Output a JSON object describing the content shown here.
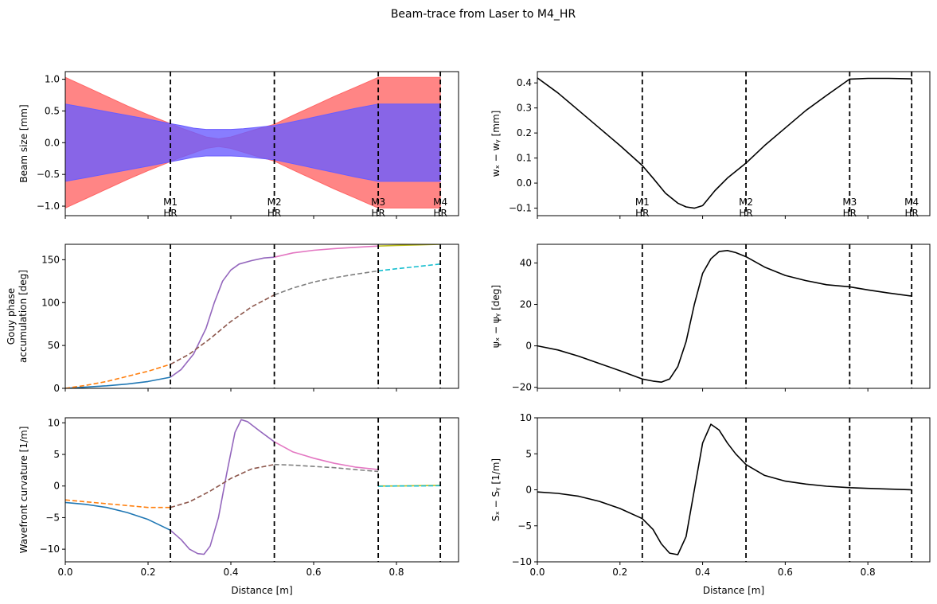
{
  "figure": {
    "title": "Beam-trace from Laser to M4_HR"
  },
  "chart_data": [
    {
      "id": "beam_size",
      "type": "area",
      "xlabel": "",
      "ylabel": "Beam size [mm]",
      "xlim": [
        0,
        0.95
      ],
      "ylim": [
        -1.15,
        1.12
      ],
      "yticks": [
        -1.0,
        -0.5,
        0.0,
        0.5,
        1.0
      ],
      "ytick_labels": [
        "−1.0",
        "−0.5",
        "0.0",
        "0.5",
        "1.0"
      ],
      "xticks": [
        0,
        0.2,
        0.4,
        0.6,
        0.8
      ],
      "show_xtick_labels": false,
      "vlines": [
        0.254,
        0.505,
        0.756,
        0.906
      ],
      "vline_labels": [
        "M1\nHR",
        "M2\nHR",
        "M3\nHR",
        "M4\nHR"
      ],
      "series": [
        {
          "color": "#ff6666",
          "x": [
            0,
            0.05,
            0.1,
            0.15,
            0.2,
            0.254,
            0.28,
            0.31,
            0.34,
            0.37,
            0.4,
            0.43,
            0.46,
            0.505,
            0.55,
            0.6,
            0.65,
            0.7,
            0.756,
            0.8,
            0.85,
            0.906
          ],
          "upper": [
            1.03,
            0.88,
            0.73,
            0.58,
            0.44,
            0.3,
            0.23,
            0.16,
            0.09,
            0.06,
            0.09,
            0.15,
            0.21,
            0.29,
            0.43,
            0.58,
            0.73,
            0.87,
            1.03,
            1.03,
            1.03,
            1.03
          ]
        },
        {
          "color": "#6a5cff",
          "x": [
            0,
            0.05,
            0.1,
            0.15,
            0.2,
            0.254,
            0.28,
            0.31,
            0.34,
            0.37,
            0.4,
            0.43,
            0.46,
            0.505,
            0.55,
            0.6,
            0.65,
            0.7,
            0.756,
            0.8,
            0.85,
            0.906
          ],
          "upper": [
            0.61,
            0.55,
            0.49,
            0.43,
            0.37,
            0.3,
            0.27,
            0.23,
            0.21,
            0.21,
            0.21,
            0.22,
            0.24,
            0.27,
            0.33,
            0.4,
            0.47,
            0.54,
            0.61,
            0.61,
            0.61,
            0.61
          ]
        }
      ]
    },
    {
      "id": "w_diff",
      "type": "line",
      "xlabel": "",
      "ylabel": "wₓ − wᵧ [mm]",
      "xlim": [
        0,
        0.95
      ],
      "ylim": [
        -0.13,
        0.445
      ],
      "yticks": [
        -0.1,
        0.0,
        0.1,
        0.2,
        0.3,
        0.4
      ],
      "ytick_labels": [
        "−0.1",
        "0.0",
        "0.1",
        "0.2",
        "0.3",
        "0.4"
      ],
      "xticks": [
        0,
        0.2,
        0.4,
        0.6,
        0.8
      ],
      "show_xtick_labels": false,
      "vlines": [
        0.254,
        0.505,
        0.756,
        0.906
      ],
      "vline_labels": [
        "M1\nHR",
        "M2\nHR",
        "M3\nHR",
        "M4\nHR"
      ],
      "series": [
        {
          "color": "#000000",
          "dashed": false,
          "x": [
            0,
            0.05,
            0.1,
            0.15,
            0.2,
            0.254,
            0.28,
            0.31,
            0.34,
            0.36,
            0.38,
            0.4,
            0.43,
            0.46,
            0.505,
            0.55,
            0.6,
            0.65,
            0.7,
            0.756,
            0.8,
            0.85,
            0.906
          ],
          "y": [
            0.42,
            0.36,
            0.29,
            0.22,
            0.15,
            0.07,
            0.02,
            -0.04,
            -0.08,
            -0.095,
            -0.1,
            -0.09,
            -0.03,
            0.02,
            0.08,
            0.15,
            0.22,
            0.29,
            0.35,
            0.415,
            0.418,
            0.418,
            0.416
          ]
        }
      ]
    },
    {
      "id": "gouy",
      "type": "line",
      "xlabel": "",
      "ylabel": "Gouy phase\naccumulation [deg]",
      "xlim": [
        0,
        0.95
      ],
      "ylim": [
        0,
        168
      ],
      "yticks": [
        0,
        50,
        100,
        150
      ],
      "ytick_labels": [
        "0",
        "50",
        "100",
        "150"
      ],
      "xticks": [
        0,
        0.2,
        0.4,
        0.6,
        0.8
      ],
      "show_xtick_labels": false,
      "vlines": [
        0.254,
        0.505,
        0.756,
        0.906
      ],
      "vline_labels": [],
      "series": [
        {
          "color": "#1f77b4",
          "dashed": false,
          "x": [
            0,
            0.05,
            0.1,
            0.15,
            0.2,
            0.254
          ],
          "y": [
            0,
            1.5,
            3,
            5,
            8,
            13
          ]
        },
        {
          "color": "#ff7f0e",
          "dashed": true,
          "x": [
            0,
            0.05,
            0.1,
            0.15,
            0.2,
            0.254
          ],
          "y": [
            0,
            3.5,
            8,
            14,
            20,
            28
          ]
        },
        {
          "color": "#9467bd",
          "dashed": false,
          "x": [
            0.254,
            0.28,
            0.31,
            0.34,
            0.36,
            0.38,
            0.4,
            0.42,
            0.45,
            0.48,
            0.505
          ],
          "y": [
            13,
            22,
            40,
            70,
            100,
            125,
            138,
            145,
            149,
            152,
            153
          ]
        },
        {
          "color": "#8c564b",
          "dashed": true,
          "x": [
            0.254,
            0.3,
            0.35,
            0.4,
            0.45,
            0.505
          ],
          "y": [
            28,
            40,
            58,
            78,
            95,
            109
          ]
        },
        {
          "color": "#e377c2",
          "dashed": false,
          "x": [
            0.505,
            0.55,
            0.6,
            0.65,
            0.7,
            0.756
          ],
          "y": [
            153,
            158,
            161,
            163,
            164.5,
            166
          ]
        },
        {
          "color": "#7f7f7f",
          "dashed": true,
          "x": [
            0.505,
            0.55,
            0.6,
            0.65,
            0.7,
            0.756
          ],
          "y": [
            109,
            117,
            124,
            129,
            133,
            137
          ]
        },
        {
          "color": "#bcbd22",
          "dashed": false,
          "x": [
            0.756,
            0.8,
            0.85,
            0.906
          ],
          "y": [
            166,
            166.7,
            167.3,
            168
          ]
        },
        {
          "color": "#17becf",
          "dashed": true,
          "x": [
            0.756,
            0.8,
            0.85,
            0.906
          ],
          "y": [
            137,
            139.5,
            142,
            145
          ]
        }
      ]
    },
    {
      "id": "psi_diff",
      "type": "line",
      "xlabel": "",
      "ylabel": "ψₓ − ψᵧ [deg]",
      "xlim": [
        0,
        0.95
      ],
      "ylim": [
        -20.5,
        49
      ],
      "yticks": [
        -20,
        0,
        20,
        40
      ],
      "ytick_labels": [
        "−20",
        "0",
        "20",
        "40"
      ],
      "xticks": [
        0,
        0.2,
        0.4,
        0.6,
        0.8
      ],
      "show_xtick_labels": false,
      "vlines": [
        0.254,
        0.505,
        0.756,
        0.906
      ],
      "vline_labels": [],
      "series": [
        {
          "color": "#000000",
          "dashed": false,
          "x": [
            0,
            0.05,
            0.1,
            0.15,
            0.2,
            0.254,
            0.28,
            0.3,
            0.32,
            0.34,
            0.36,
            0.38,
            0.4,
            0.42,
            0.44,
            0.46,
            0.48,
            0.505,
            0.55,
            0.6,
            0.65,
            0.7,
            0.756,
            0.8,
            0.85,
            0.906
          ],
          "y": [
            0,
            -2,
            -5,
            -8.5,
            -12,
            -16,
            -17,
            -17.5,
            -16,
            -10,
            2,
            20,
            35,
            42,
            45.5,
            46,
            45,
            43,
            38,
            34,
            31.5,
            29.5,
            28.5,
            27,
            25.5,
            24
          ]
        }
      ]
    },
    {
      "id": "curvature",
      "type": "line",
      "xlabel": "Distance [m]",
      "ylabel": "Wavefront curvature [1/m]",
      "xlim": [
        0,
        0.95
      ],
      "ylim": [
        -12,
        10.8
      ],
      "yticks": [
        -10,
        -5,
        0,
        5,
        10
      ],
      "ytick_labels": [
        "−10",
        "−5",
        "0",
        "5",
        "10"
      ],
      "xticks": [
        0,
        0.2,
        0.4,
        0.6,
        0.8
      ],
      "xtick_labels": [
        "0.0",
        "0.2",
        "0.4",
        "0.6",
        "0.8"
      ],
      "show_xtick_labels": true,
      "vlines": [
        0.254,
        0.505,
        0.756,
        0.906
      ],
      "vline_labels": [],
      "series": [
        {
          "color": "#1f77b4",
          "dashed": false,
          "x": [
            0,
            0.05,
            0.1,
            0.15,
            0.2,
            0.254
          ],
          "y": [
            -2.6,
            -2.9,
            -3.4,
            -4.2,
            -5.3,
            -7.0
          ]
        },
        {
          "color": "#ff7f0e",
          "dashed": true,
          "x": [
            0,
            0.05,
            0.1,
            0.15,
            0.2,
            0.254
          ],
          "y": [
            -2.2,
            -2.5,
            -2.8,
            -3.1,
            -3.4,
            -3.4
          ]
        },
        {
          "color": "#9467bd",
          "dashed": false,
          "x": [
            0.254,
            0.28,
            0.3,
            0.32,
            0.335,
            0.35,
            0.37,
            0.39,
            0.41,
            0.425,
            0.44,
            0.47,
            0.505
          ],
          "y": [
            -7.0,
            -8.5,
            -10,
            -10.7,
            -10.8,
            -9.5,
            -5,
            2,
            8.5,
            10.5,
            10.2,
            8.7,
            7.0
          ]
        },
        {
          "color": "#8c564b",
          "dashed": true,
          "x": [
            0.254,
            0.3,
            0.35,
            0.4,
            0.45,
            0.505
          ],
          "y": [
            -3.4,
            -2.5,
            -0.8,
            1.2,
            2.7,
            3.4
          ]
        },
        {
          "color": "#e377c2",
          "dashed": false,
          "x": [
            0.505,
            0.55,
            0.6,
            0.65,
            0.7,
            0.756
          ],
          "y": [
            7.0,
            5.4,
            4.4,
            3.6,
            3.0,
            2.6
          ]
        },
        {
          "color": "#7f7f7f",
          "dashed": true,
          "x": [
            0.505,
            0.55,
            0.6,
            0.65,
            0.7,
            0.756
          ],
          "y": [
            3.4,
            3.3,
            3.1,
            2.9,
            2.6,
            2.3
          ]
        },
        {
          "color": "#bcbd22",
          "dashed": false,
          "x": [
            0.756,
            0.8,
            0.85,
            0.906
          ],
          "y": [
            0.0,
            0.0,
            0.05,
            0.1
          ]
        },
        {
          "color": "#17becf",
          "dashed": true,
          "x": [
            0.756,
            0.8,
            0.85,
            0.906
          ],
          "y": [
            -0.05,
            0.0,
            0.0,
            0.05
          ]
        }
      ]
    },
    {
      "id": "s_diff",
      "type": "line",
      "xlabel": "Distance [m]",
      "ylabel": "Sₓ − Sᵧ [1/m]",
      "xlim": [
        0,
        0.95
      ],
      "ylim": [
        -10,
        10
      ],
      "yticks": [
        -10,
        -5,
        0,
        5,
        10
      ],
      "ytick_labels": [
        "−10",
        "−5",
        "0",
        "5",
        "10"
      ],
      "xticks": [
        0,
        0.2,
        0.4,
        0.6,
        0.8
      ],
      "xtick_labels": [
        "0.0",
        "0.2",
        "0.4",
        "0.6",
        "0.8"
      ],
      "show_xtick_labels": true,
      "vlines": [
        0.254,
        0.505,
        0.756,
        0.906
      ],
      "vline_labels": [],
      "series": [
        {
          "color": "#000000",
          "dashed": false,
          "x": [
            0,
            0.05,
            0.1,
            0.15,
            0.2,
            0.254,
            0.28,
            0.3,
            0.32,
            0.34,
            0.36,
            0.38,
            0.4,
            0.42,
            0.44,
            0.46,
            0.48,
            0.505,
            0.55,
            0.6,
            0.65,
            0.7,
            0.756,
            0.8,
            0.85,
            0.906
          ],
          "y": [
            -0.3,
            -0.5,
            -0.9,
            -1.6,
            -2.6,
            -4.0,
            -5.5,
            -7.5,
            -8.8,
            -9.0,
            -6.5,
            0,
            6.5,
            9.1,
            8.3,
            6.5,
            5.0,
            3.5,
            2.0,
            1.2,
            0.8,
            0.5,
            0.3,
            0.2,
            0.1,
            0.0
          ]
        }
      ]
    }
  ]
}
